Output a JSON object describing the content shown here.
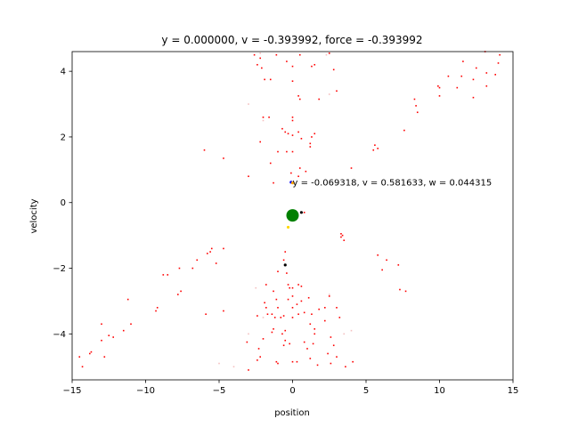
{
  "chart_data": {
    "type": "scatter",
    "title": "y = 0.000000, v = -0.393992, force = -0.393992",
    "xlabel": "position",
    "ylabel": "velocity",
    "xlim": [
      -15,
      15
    ],
    "ylim": [
      -5.4,
      4.6
    ],
    "xticks": [
      -15,
      -10,
      -5,
      0,
      5,
      10,
      15
    ],
    "yticks": [
      -4,
      -2,
      0,
      2,
      4
    ],
    "xtick_labels": [
      "−15",
      "−10",
      "−5",
      "0",
      "5",
      "10",
      "15"
    ],
    "ytick_labels": [
      "−4",
      "−2",
      "0",
      "2",
      "4"
    ],
    "grid": false,
    "colors": {
      "samples": "#ff0000",
      "faint": "#f4c0c0",
      "current": "#008000",
      "marker_blue": "#0000ff",
      "marker_orange": "#ffa500",
      "marker_yellow": "#ffd700",
      "marker_black": "#000000"
    },
    "annotation": {
      "text": "y = -0.069318, v = 0.581633, w = 0.044315",
      "x": 0.0,
      "y": 0.58
    },
    "current_state": {
      "position": 0.0,
      "velocity": -0.39
    },
    "special_points": [
      {
        "x": -0.1,
        "y": 0.62,
        "color": "marker_blue"
      },
      {
        "x": 0.0,
        "y": 0.6,
        "color": "marker_orange"
      },
      {
        "x": -0.3,
        "y": -0.75,
        "color": "marker_yellow"
      },
      {
        "x": -0.5,
        "y": -1.9,
        "color": "marker_black"
      },
      {
        "x": 0.6,
        "y": -0.3,
        "color": "marker_black"
      }
    ],
    "series": [
      {
        "values": [
          [
            -14.5,
            -4.7
          ],
          [
            -14.3,
            -5.0
          ],
          [
            -13.8,
            -4.6
          ],
          [
            -13.7,
            -4.55
          ],
          [
            -13.0,
            -4.2
          ],
          [
            -12.8,
            -4.7
          ],
          [
            -12.5,
            -4.05
          ],
          [
            -12.2,
            -4.1
          ],
          [
            -13.0,
            -3.7
          ],
          [
            -11.5,
            -3.9
          ],
          [
            -11.0,
            -3.7
          ],
          [
            -11.2,
            -2.95
          ],
          [
            -9.3,
            -3.3
          ],
          [
            -9.2,
            -3.2
          ],
          [
            -8.8,
            -2.2
          ],
          [
            -8.5,
            -2.2
          ],
          [
            -7.8,
            -2.8
          ],
          [
            -7.6,
            -2.7
          ],
          [
            -7.7,
            -2.0
          ],
          [
            -6.8,
            -2.0
          ],
          [
            -6.5,
            -1.75
          ],
          [
            -5.8,
            -1.55
          ],
          [
            -5.6,
            -1.5
          ],
          [
            -5.5,
            -1.4
          ],
          [
            -5.2,
            -1.85
          ],
          [
            -4.7,
            -1.4
          ],
          [
            -4.7,
            -3.3
          ],
          [
            -5.9,
            -3.4
          ],
          [
            -6.0,
            1.6
          ],
          [
            -4.7,
            1.35
          ],
          [
            -3.0,
            0.8
          ],
          [
            -2.6,
            4.5
          ],
          [
            -2.4,
            4.2
          ],
          [
            -2.2,
            4.4
          ],
          [
            -2.1,
            4.1
          ],
          [
            -1.9,
            3.75
          ],
          [
            -1.5,
            3.75
          ],
          [
            -1.1,
            4.5
          ],
          [
            -0.4,
            4.3
          ],
          [
            0.0,
            4.15
          ],
          [
            0.0,
            3.7
          ],
          [
            0.5,
            4.5
          ],
          [
            1.3,
            4.15
          ],
          [
            1.5,
            4.2
          ],
          [
            2.5,
            4.55
          ],
          [
            2.8,
            4.05
          ],
          [
            3.0,
            3.4
          ],
          [
            0.4,
            3.25
          ],
          [
            0.5,
            3.15
          ],
          [
            1.8,
            3.15
          ],
          [
            -2.0,
            2.6
          ],
          [
            -1.6,
            2.6
          ],
          [
            -0.7,
            2.25
          ],
          [
            -0.5,
            2.15
          ],
          [
            -0.3,
            2.1
          ],
          [
            0.0,
            2.5
          ],
          [
            0.0,
            2.05
          ],
          [
            0.4,
            2.15
          ],
          [
            0.6,
            1.95
          ],
          [
            1.2,
            1.8
          ],
          [
            1.5,
            2.1
          ],
          [
            1.3,
            2.0
          ],
          [
            1.2,
            1.7
          ],
          [
            -2.2,
            1.85
          ],
          [
            -1.0,
            1.55
          ],
          [
            0.0,
            1.55
          ],
          [
            0.5,
            1.05
          ],
          [
            0.9,
            0.95
          ],
          [
            -0.4,
            1.55
          ],
          [
            0.0,
            2.6
          ],
          [
            -0.1,
            0.9
          ],
          [
            -1.5,
            1.2
          ],
          [
            -1.3,
            0.6
          ],
          [
            0.4,
            0.8
          ],
          [
            0.1,
            -0.5
          ],
          [
            0.8,
            -0.3
          ],
          [
            -0.5,
            -1.5
          ],
          [
            -0.6,
            -1.75
          ],
          [
            -0.4,
            -2.15
          ],
          [
            -1.0,
            -2.1
          ],
          [
            -0.3,
            -2.5
          ],
          [
            0.0,
            -2.6
          ],
          [
            0.4,
            -2.5
          ],
          [
            0.6,
            -2.55
          ],
          [
            -0.3,
            -2.95
          ],
          [
            0.0,
            -2.85
          ],
          [
            -0.2,
            -2.6
          ],
          [
            -1.8,
            -2.5
          ],
          [
            -1.3,
            -2.7
          ],
          [
            -1.1,
            -2.95
          ],
          [
            -1.9,
            -3.05
          ],
          [
            -1.7,
            -3.4
          ],
          [
            -1.8,
            -3.2
          ],
          [
            -1.4,
            -3.4
          ],
          [
            -1.0,
            -3.2
          ],
          [
            -0.8,
            -3.5
          ],
          [
            -1.2,
            -3.5
          ],
          [
            -2.4,
            -3.45
          ],
          [
            -1.4,
            -3.95
          ],
          [
            -1.3,
            -3.85
          ],
          [
            -0.6,
            -3.45
          ],
          [
            -0.7,
            -4.0
          ],
          [
            -0.5,
            -3.9
          ],
          [
            0.0,
            -3.5
          ],
          [
            0.0,
            -3.2
          ],
          [
            0.3,
            -3.1
          ],
          [
            0.4,
            -3.4
          ],
          [
            0.8,
            -3.35
          ],
          [
            0.6,
            -3.0
          ],
          [
            1.1,
            -2.9
          ],
          [
            1.3,
            -3.4
          ],
          [
            1.2,
            -3.7
          ],
          [
            1.5,
            -4.0
          ],
          [
            1.5,
            -3.85
          ],
          [
            2.2,
            -3.6
          ],
          [
            2.2,
            -3.2
          ],
          [
            1.8,
            -3.25
          ],
          [
            2.5,
            -2.85
          ],
          [
            3.0,
            -3.2
          ],
          [
            3.2,
            -3.5
          ],
          [
            -0.2,
            -4.3
          ],
          [
            -0.5,
            -4.2
          ],
          [
            -0.6,
            -4.35
          ],
          [
            -2.0,
            -4.15
          ],
          [
            -2.3,
            -4.45
          ],
          [
            -2.4,
            -4.8
          ],
          [
            -2.2,
            -4.7
          ],
          [
            -3.1,
            -4.25
          ],
          [
            -3.0,
            -5.1
          ],
          [
            -1.1,
            -4.85
          ],
          [
            -1.0,
            -4.9
          ],
          [
            0.0,
            -4.85
          ],
          [
            0.3,
            -4.85
          ],
          [
            1.2,
            -4.75
          ],
          [
            1.7,
            -4.95
          ],
          [
            2.6,
            -4.9
          ],
          [
            3.0,
            -4.7
          ],
          [
            4.1,
            -4.85
          ],
          [
            0.8,
            -4.25
          ],
          [
            1.0,
            -4.45
          ],
          [
            2.6,
            -4.1
          ],
          [
            2.8,
            -4.35
          ],
          [
            2.4,
            -4.6
          ],
          [
            3.6,
            -5.0
          ],
          [
            1.4,
            -4.3
          ],
          [
            3.3,
            -1.05
          ],
          [
            3.4,
            -1.0
          ],
          [
            3.3,
            -0.95
          ],
          [
            3.5,
            -1.15
          ],
          [
            4.0,
            1.05
          ],
          [
            5.5,
            1.6
          ],
          [
            5.6,
            1.75
          ],
          [
            5.8,
            1.65
          ],
          [
            7.6,
            2.2
          ],
          [
            5.8,
            -1.6
          ],
          [
            6.1,
            -2.05
          ],
          [
            6.4,
            -1.75
          ],
          [
            7.2,
            -1.9
          ],
          [
            7.3,
            -2.65
          ],
          [
            7.7,
            -2.7
          ],
          [
            8.3,
            3.15
          ],
          [
            8.4,
            2.95
          ],
          [
            8.5,
            2.75
          ],
          [
            9.9,
            3.55
          ],
          [
            10.0,
            3.25
          ],
          [
            10.0,
            3.5
          ],
          [
            10.6,
            3.85
          ],
          [
            11.2,
            3.5
          ],
          [
            11.5,
            3.85
          ],
          [
            11.6,
            4.3
          ],
          [
            12.3,
            3.75
          ],
          [
            12.5,
            4.1
          ],
          [
            12.3,
            3.2
          ],
          [
            13.2,
            3.55
          ],
          [
            13.2,
            3.95
          ],
          [
            13.8,
            3.9
          ],
          [
            14.0,
            4.25
          ],
          [
            13.1,
            4.6
          ],
          [
            14.1,
            4.5
          ]
        ]
      },
      {
        "name": "",
        "values": [
          [
            -4.0,
            -5.0
          ],
          [
            -5.0,
            -4.9
          ],
          [
            -3.0,
            -4.0
          ],
          [
            -2.5,
            -2.6
          ],
          [
            -2.0,
            -3.5
          ],
          [
            -2.0,
            2.5
          ],
          [
            -3.0,
            3.0
          ],
          [
            2.5,
            3.3
          ],
          [
            2.5,
            -2.8
          ],
          [
            3.5,
            -4.0
          ],
          [
            4.0,
            -3.9
          ],
          [
            -2.2,
            4.55
          ],
          [
            2.3,
            4.5
          ]
        ]
      }
    ]
  }
}
